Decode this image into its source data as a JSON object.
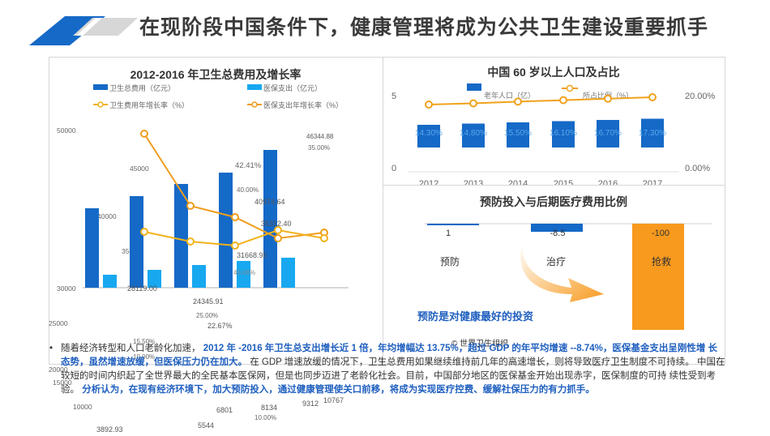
{
  "header": {
    "title": "在现阶段中国条件下，健康管理将成为公共卫生建设重要抓手",
    "colors": {
      "accent": "#1569c7",
      "accent_light": "#9ecbf0"
    }
  },
  "chart1": {
    "title": "2012-2016 年卫生总费用及增长率",
    "legend": [
      "卫生总费用（亿元）",
      "医保支出（亿元）",
      "卫生费用年增长率（%）",
      "医保支出年增长率（%）"
    ],
    "y_ticks": [
      "50000",
      "45000",
      "40000",
      "35000",
      "30000",
      "25000",
      "20000",
      "15000",
      "10000"
    ],
    "pct_labels": [
      "15.50%",
      "10.00%",
      "25.00%",
      "40.00%",
      "42.41%",
      "35.00%"
    ],
    "colors": {
      "total": "#1569c7",
      "insurance": "#17a8f0",
      "line_total": "#f2b21c",
      "line_ins": "#ef9d1d"
    }
  },
  "chart_data": [
    {
      "type": "bar",
      "categories": [
        "2012",
        "2013",
        "2014",
        "2015",
        "2016"
      ],
      "series": [
        {
          "name": "卫生总费用（亿元）",
          "values": [
            28119.0,
            31668.95,
            35312.4,
            40974.64,
            46344.88
          ]
        },
        {
          "name": "医保支出（亿元）",
          "values": [
            6000,
            6801,
            8134,
            9312,
            10767
          ]
        },
        {
          "name": "卫生费用年增长率（%）",
          "values": [
            17.9,
            12.8,
            11.5,
            16.0,
            13.1
          ]
        },
        {
          "name": "医保支出年增长率（%）",
          "values": [
            42.41,
            25.0,
            22.67,
            14.5,
            15.6
          ]
        }
      ],
      "data_labels": [
        "28119.00",
        "31668.95",
        "35312.40",
        "40974.64",
        "46344.88",
        "6801",
        "8134",
        "9312",
        "10767",
        "3892.93",
        "5544",
        "24345.91",
        "22.67%"
      ]
    },
    {
      "type": "bar",
      "title": "中国 60 岁以上人口及占比",
      "categories": [
        "2012",
        "2013",
        "2014",
        "2015",
        "2016",
        "2017"
      ],
      "series": [
        {
          "name": "老年人口（亿）",
          "values": [
            1.94,
            2.02,
            2.12,
            2.22,
            2.31,
            2.41
          ]
        },
        {
          "name": "所占比例（%）",
          "values": [
            14.3,
            14.8,
            15.5,
            16.1,
            16.7,
            17.3
          ]
        }
      ],
      "bar_labels": [
        "14.30%",
        "14.80%",
        "15.50%",
        "16.10%",
        "16.70%",
        "17.30%"
      ],
      "y_left": [
        "5",
        "0"
      ],
      "y_right": [
        "20.00%",
        "0.00%"
      ]
    },
    {
      "type": "bar",
      "title": "预防投入与后期医疗费用比例",
      "categories": [
        "预防",
        "治疗",
        "抢救"
      ],
      "values": [
        1,
        -8.5,
        -100
      ],
      "value_labels": [
        "1",
        "-8.5",
        "-100"
      ],
      "caption": "预防是对健康最好的投资",
      "source": "©  世界卫生组织"
    }
  ],
  "paragraph": {
    "p1": "随着经济转型和人口老龄化加速，",
    "p2": "2012 年 -2016 年卫生总支出增长近 1 倍，年均增幅达 13.75%，超过 GDP 的年平均增速 --8.74%，医保基金支出呈刚性增 长态势，虽然增速放缓，但医保压力仍在加大。",
    "p3": "在 GDP 增速放缓的情况下，卫生总费用如果继续维持前几年的高速增长，则将导致医疗卫生制度不可持续。 中国在较短的时间内织起了全世界最大的全民基本医保网，但是也同步迈进了老龄化社会。目前，中国部分地区的医保基金开始出现赤字，医保制度的可持 续性受到考验。",
    "p4": "分析认为，在现有经济环境下，加大预防投入，通过健康管理使关口前移，将成为实现医疗控费、缓解社保压力的有力抓手。"
  }
}
